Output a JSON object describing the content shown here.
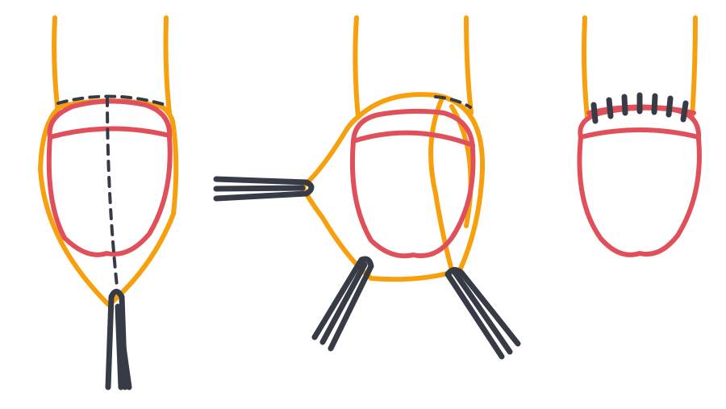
{
  "colors": {
    "background": "#ffffff",
    "outer_layer": "#f7a00d",
    "inner_layer": "#e0505a",
    "instrument": "#363b45"
  },
  "panels": [
    {
      "id": "step-1",
      "icons": [
        "incision-line-icon",
        "clamp-icon"
      ]
    },
    {
      "id": "step-2",
      "icons": [
        "clamp-icon",
        "clamp-icon",
        "clamp-icon"
      ]
    },
    {
      "id": "step-3",
      "icons": [
        "sutures-icon"
      ]
    }
  ]
}
